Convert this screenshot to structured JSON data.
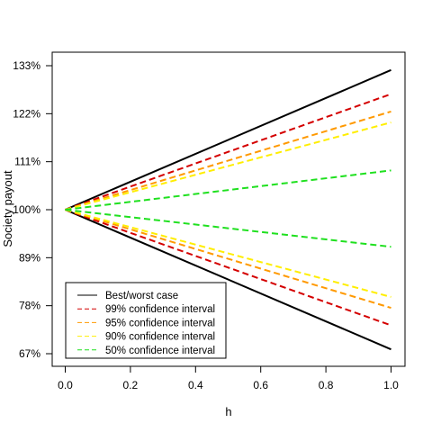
{
  "chart_data": {
    "type": "line",
    "xlabel": "h",
    "ylabel": "Society payout",
    "xlim": [
      0,
      1
    ],
    "ylim": [
      67,
      133
    ],
    "x_ticks": [
      {
        "value": 0.0,
        "label": "0.0"
      },
      {
        "value": 0.2,
        "label": "0.2"
      },
      {
        "value": 0.4,
        "label": "0.4"
      },
      {
        "value": 0.6,
        "label": "0.6"
      },
      {
        "value": 0.8,
        "label": "0.8"
      },
      {
        "value": 1.0,
        "label": "1.0"
      }
    ],
    "y_ticks": [
      {
        "value": 67,
        "label": "67%"
      },
      {
        "value": 78,
        "label": "78%"
      },
      {
        "value": 89,
        "label": "89%"
      },
      {
        "value": 100,
        "label": "100%"
      },
      {
        "value": 111,
        "label": "111%"
      },
      {
        "value": 122,
        "label": "122%"
      },
      {
        "value": 133,
        "label": "133%"
      }
    ],
    "legend_position": "bottom-left",
    "grid": false,
    "series": [
      {
        "name": "Best/worst case",
        "color": "#000000",
        "style": "solid",
        "upper": [
          [
            0,
            100
          ],
          [
            1,
            132
          ]
        ],
        "lower": [
          [
            0,
            100
          ],
          [
            1,
            68
          ]
        ]
      },
      {
        "name": "99% confidence interval",
        "color": "#d40000",
        "style": "dashed",
        "upper": [
          [
            0,
            100
          ],
          [
            1,
            126.5
          ]
        ],
        "lower": [
          [
            0,
            100
          ],
          [
            1,
            73.5
          ]
        ]
      },
      {
        "name": "95% confidence interval",
        "color": "#ff9900",
        "style": "dashed",
        "upper": [
          [
            0,
            100
          ],
          [
            1,
            122.5
          ]
        ],
        "lower": [
          [
            0,
            100
          ],
          [
            1,
            77.5
          ]
        ]
      },
      {
        "name": "90% confidence interval",
        "color": "#ffee00",
        "style": "dashed",
        "upper": [
          [
            0,
            100
          ],
          [
            1,
            120
          ]
        ],
        "lower": [
          [
            0,
            100
          ],
          [
            1,
            80
          ]
        ]
      },
      {
        "name": "50% confidence interval",
        "color": "#1fe01f",
        "style": "dashed",
        "upper": [
          [
            0,
            100
          ],
          [
            1,
            109
          ]
        ],
        "lower": [
          [
            0,
            100
          ],
          [
            1,
            91.5
          ]
        ]
      }
    ]
  }
}
